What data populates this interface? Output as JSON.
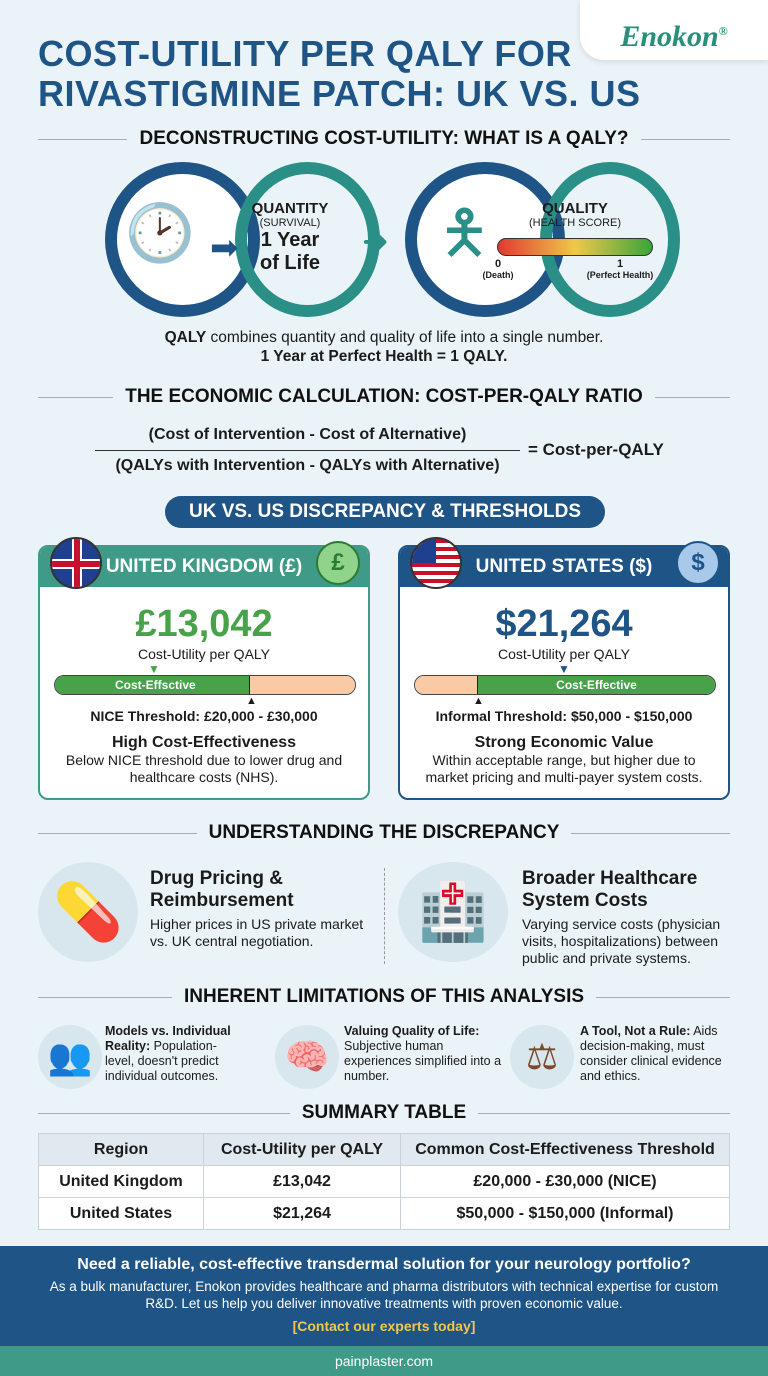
{
  "title": [
    "COST-UTILITY PER QALY FOR",
    "RIVASTIGMINE PATCH: UK VS. US"
  ],
  "logo": "Enokon",
  "qaly": {
    "heading": "DECONSTRUCTING COST-UTILITY: WHAT IS A QALY?",
    "quantity_label": "QUANTITY",
    "quantity_sub": "(SURVIVAL)",
    "quantity_value": [
      "1 Year",
      "of Life"
    ],
    "quality_label": "QUALITY",
    "quality_sub": "(HEALTH SCORE)",
    "scale_min": "0",
    "scale_min_label": "(Death)",
    "scale_max": "1",
    "scale_max_label": "(Perfect Health)",
    "desc1": "combines quantity and quality of life into a single number.",
    "desc1_bold": "QALY",
    "desc2": "1 Year at Perfect Health = 1 QALY."
  },
  "calc": {
    "heading": "THE ECONOMIC CALCULATION: COST-PER-QALY RATIO",
    "numerator": "(Cost of Intervention - Cost of Alternative)",
    "denominator": "(QALYs with Intervention - QALYs with Alternative)",
    "result": "= Cost-per-QALY"
  },
  "compare_heading": "UK VS. US DISCREPANCY & THRESHOLDS",
  "uk": {
    "header": "UNITED KINGDOM (£)",
    "symbol": "£",
    "value": "£13,042",
    "sublabel": "Cost-Utility per QALY",
    "bar_label": "Cost-Effsctive",
    "threshold": "NICE Threshold: £20,000 - £30,000",
    "verdict": "High Cost-Effectiveness",
    "desc": "Below NICE threshold due to lower drug and healthcare costs (NHS).",
    "color": "#3f9a88"
  },
  "us": {
    "header": "UNITED STATES ($)",
    "symbol": "$",
    "value": "$21,264",
    "sublabel": "Cost-Utility per QALY",
    "bar_label": "Cost-Effective",
    "threshold": "Informal Threshold: $50,000 - $150,000",
    "verdict": "Strong Economic Value",
    "desc": "Within acceptable range, but higher due to market pricing and multi-payer system costs.",
    "color": "#1e5486"
  },
  "discrepancy": {
    "heading": "UNDERSTANDING THE DISCREPANCY",
    "items": [
      {
        "title": "Drug Pricing & Reimbursement",
        "desc": "Higher prices in US private market vs. UK central negotiation."
      },
      {
        "title": "Broader Healthcare System Costs",
        "desc": "Varying service costs (physician visits, hospitalizations) between public and private systems."
      }
    ]
  },
  "limitations": {
    "heading": "INHERENT LIMITATIONS OF THIS ANALYSIS",
    "items": [
      {
        "bold": "Models vs. Individual Reality:",
        "text": " Population-level, doesn't predict individual outcomes."
      },
      {
        "bold": "Valuing Quality of Life:",
        "text": " Subjective human experiences simplified into a number."
      },
      {
        "bold": "A Tool, Not a Rule:",
        "text": " Aids decision-making, must consider clinical evidence and ethics."
      }
    ]
  },
  "summary": {
    "heading": "SUMMARY TABLE",
    "columns": [
      "Region",
      "Cost-Utility per QALY",
      "Common Cost-Effectiveness Threshold"
    ],
    "rows": [
      [
        "United Kingdom",
        "£13,042",
        "£20,000 - £30,000 (NICE)"
      ],
      [
        "United States",
        "$21,264",
        "$50,000 - $150,000 (Informal)"
      ]
    ]
  },
  "footer": {
    "headline": "Need a reliable, cost-effective transdermal solution for your neurology portfolio?",
    "body": "As a bulk manufacturer, Enokon provides healthcare and pharma distributors with technical expertise for custom R&D. Let us help you deliver innovative treatments with proven economic value.",
    "cta": "[Contact our experts today]",
    "url": "painplaster.com"
  }
}
